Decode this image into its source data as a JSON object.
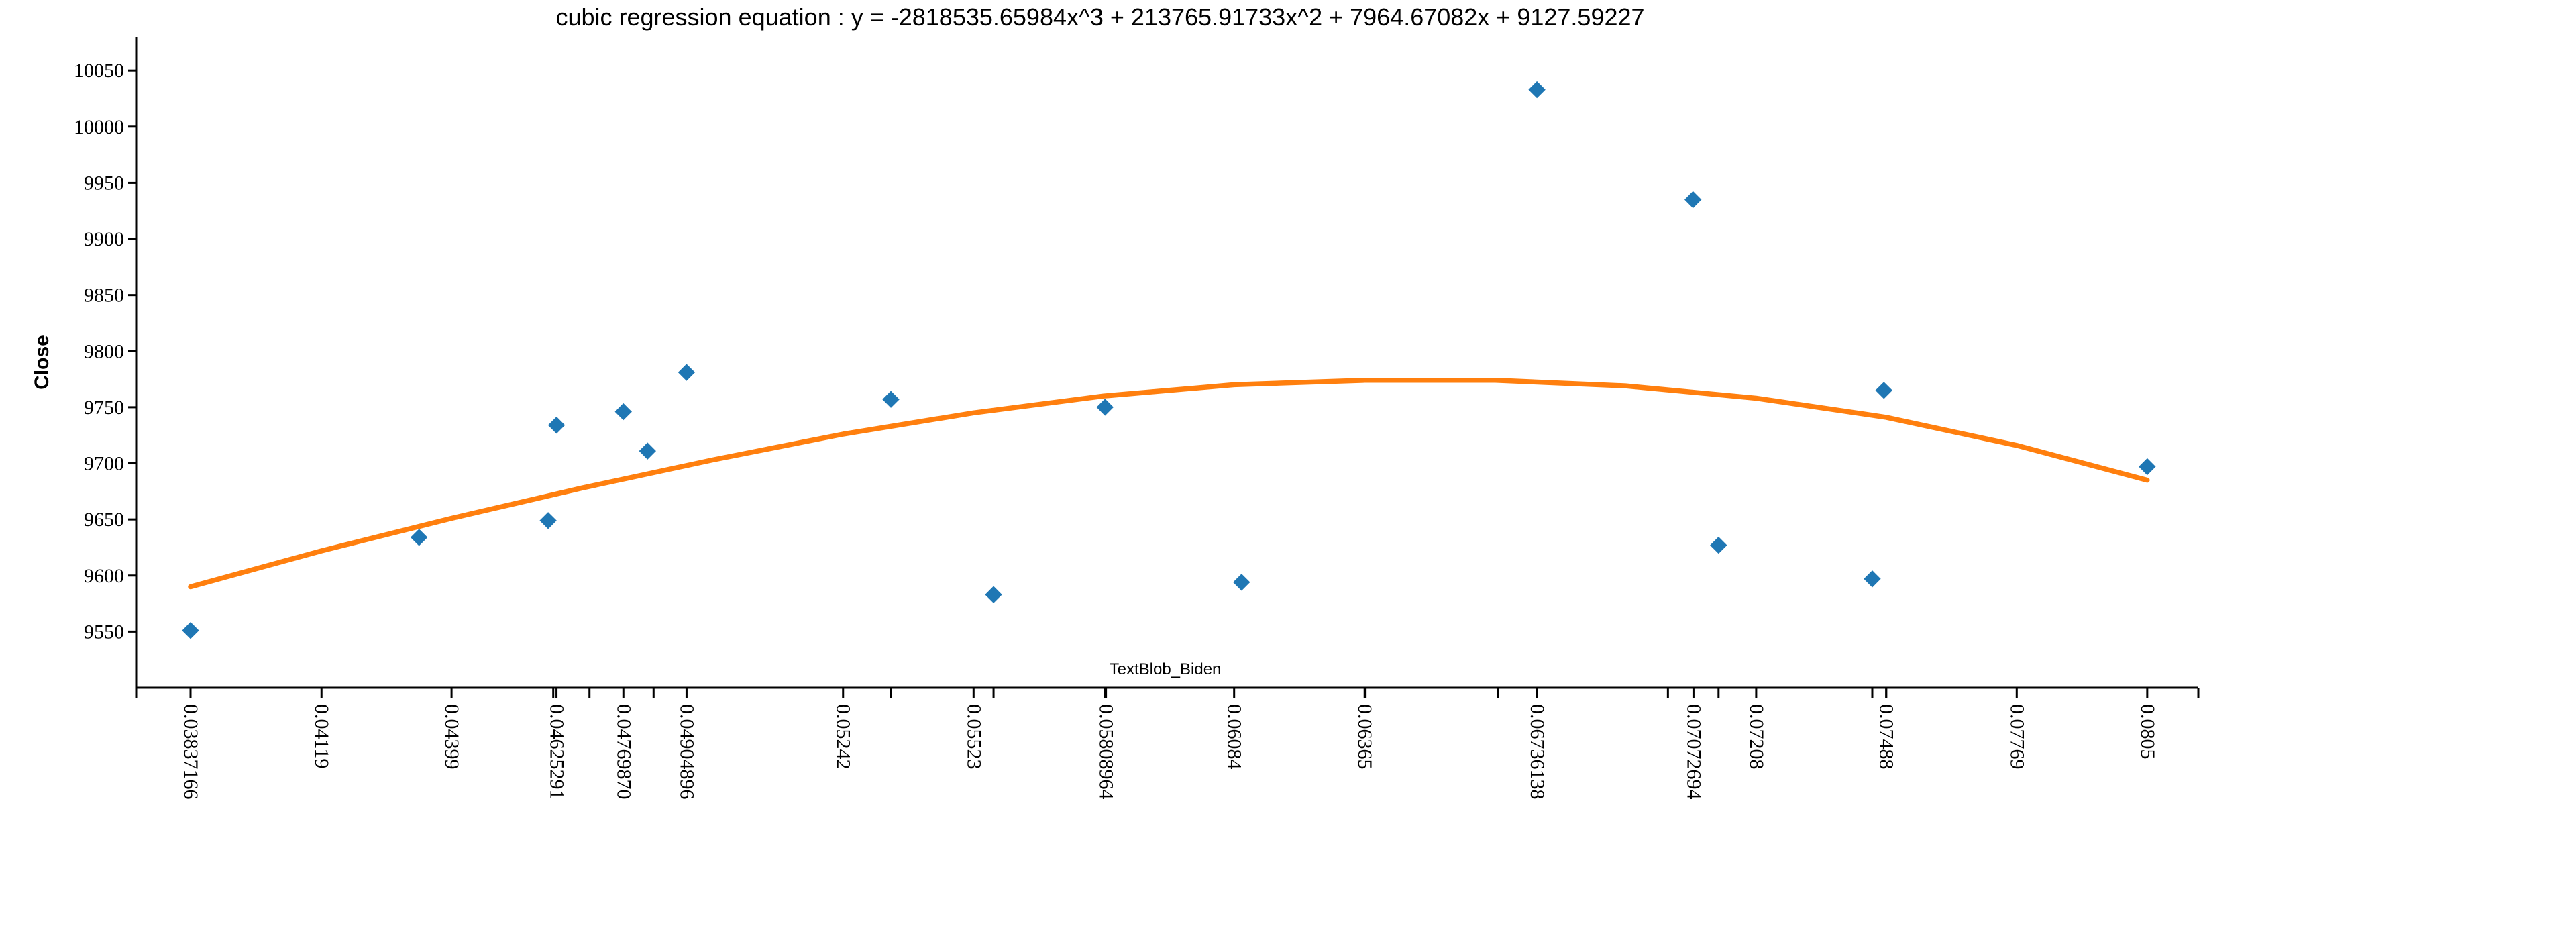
{
  "chart_data": {
    "type": "scatter",
    "title": "cubic regression equation : y = -2818535.65984x^3 + 213765.91733x^2 + 7964.67082x + 9127.59227",
    "xlabel": "TextBlob_Biden",
    "ylabel": "Close",
    "xlim": [
      0.0372,
      0.0816
    ],
    "ylim": [
      9500,
      10080
    ],
    "y_ticks": [
      "9550",
      "9600",
      "9650",
      "9700",
      "9750",
      "9800",
      "9850",
      "9900",
      "9950",
      "10000",
      "10050"
    ],
    "x_ticks": [
      {
        "value": 0.03837,
        "label": "0.03837166"
      },
      {
        "value": 0.04119,
        "label": "0.04119"
      },
      {
        "value": 0.04399,
        "label": "0.04399"
      },
      {
        "value": 0.04625,
        "label": "0.04625291"
      },
      {
        "value": 0.04769,
        "label": "0.04769870"
      },
      {
        "value": 0.04905,
        "label": "0.04904896"
      },
      {
        "value": 0.05242,
        "label": "0.05242"
      },
      {
        "value": 0.05523,
        "label": "0.05523"
      },
      {
        "value": 0.05808,
        "label": "0.05808964"
      },
      {
        "value": 0.06084,
        "label": "0.06084"
      },
      {
        "value": 0.06365,
        "label": "0.06365"
      },
      {
        "value": 0.06736,
        "label": "0.06736138"
      },
      {
        "value": 0.07073,
        "label": "0.07072694"
      },
      {
        "value": 0.07208,
        "label": "0.07208"
      },
      {
        "value": 0.07488,
        "label": "0.07488"
      },
      {
        "value": 0.07769,
        "label": "0.07769"
      },
      {
        "value": 0.0805,
        "label": "0.0805"
      }
    ],
    "x_minor_ticks": [
      0.0372,
      0.04618,
      0.04696,
      0.04834,
      0.05345,
      0.05566,
      0.05806,
      0.06367,
      0.06652,
      0.07018,
      0.07127,
      0.07458,
      0.07488,
      0.0816
    ],
    "series": [
      {
        "type": "scatter",
        "marker": "diamond",
        "color": "#1f77b4",
        "points": [
          [
            0.03837,
            9551
          ],
          [
            0.04329,
            9634
          ],
          [
            0.04607,
            9649
          ],
          [
            0.04625,
            9734
          ],
          [
            0.04769,
            9746
          ],
          [
            0.04821,
            9711
          ],
          [
            0.04905,
            9781
          ],
          [
            0.05345,
            9757
          ],
          [
            0.05566,
            9583
          ],
          [
            0.05806,
            9750
          ],
          [
            0.061,
            9594
          ],
          [
            0.06736,
            10033
          ],
          [
            0.07072,
            9935
          ],
          [
            0.07127,
            9627
          ],
          [
            0.07458,
            9597
          ],
          [
            0.07483,
            9765
          ],
          [
            0.0805,
            9697
          ]
        ]
      },
      {
        "type": "line",
        "color": "#ff7f0e",
        "points": [
          [
            0.03837,
            9590
          ],
          [
            0.04119,
            9622
          ],
          [
            0.04399,
            9651
          ],
          [
            0.0468,
            9678
          ],
          [
            0.04961,
            9703
          ],
          [
            0.05242,
            9726
          ],
          [
            0.05523,
            9745
          ],
          [
            0.05803,
            9760
          ],
          [
            0.06084,
            9770
          ],
          [
            0.06365,
            9774
          ],
          [
            0.06646,
            9774
          ],
          [
            0.06927,
            9769
          ],
          [
            0.07208,
            9758
          ],
          [
            0.07488,
            9741
          ],
          [
            0.07769,
            9716
          ],
          [
            0.0805,
            9685
          ]
        ]
      }
    ]
  }
}
